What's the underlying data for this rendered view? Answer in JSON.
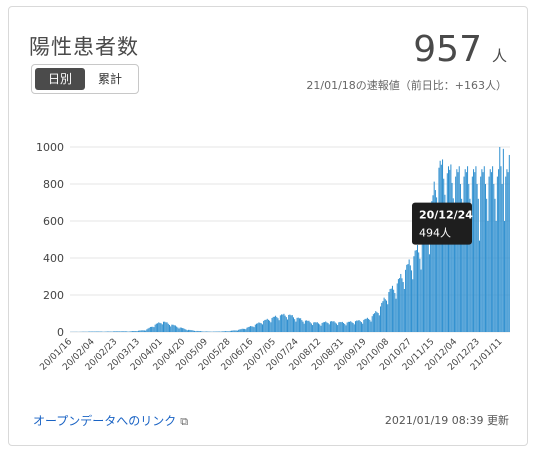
{
  "header": {
    "title": "陽性患者数",
    "toggle": {
      "daily": "日別",
      "cumulative": "累計"
    },
    "big_value": "957",
    "big_unit": "人",
    "subtitle": "21/01/18の速報値（前日比：+163人）"
  },
  "tooltip": {
    "date": "20/12/24",
    "value": "494人"
  },
  "footer": {
    "link_label": "オープンデータへのリンク",
    "updated": "2021/01/19 08:39 更新"
  },
  "colors": {
    "bar": "#2f8fcf",
    "grid": "#e6e6e6",
    "tooltip_bg": "#1e1e1e",
    "link": "#1a63c4"
  },
  "chart_data": {
    "type": "bar",
    "title": "",
    "xlabel": "",
    "ylabel": "",
    "ylim": [
      0,
      1000
    ],
    "yticks": [
      0,
      200,
      400,
      600,
      800,
      1000
    ],
    "grid": true,
    "x_start": "2020-01-16",
    "x_end": "2021-01-18",
    "x_tick_labels": [
      "20/01/16",
      "20/02/04",
      "20/02/23",
      "20/03/13",
      "20/04/01",
      "20/04/20",
      "20/05/09",
      "20/05/28",
      "20/06/16",
      "20/07/05",
      "20/07/24",
      "20/08/12",
      "20/08/31",
      "20/09/19",
      "20/10/08",
      "20/10/27",
      "20/11/15",
      "20/12/04",
      "20/12/23",
      "21/01/11"
    ],
    "weekly_values": [
      1,
      1,
      2,
      3,
      2,
      3,
      4,
      3,
      6,
      10,
      35,
      55,
      40,
      25,
      12,
      6,
      3,
      2,
      3,
      5,
      10,
      20,
      35,
      55,
      70,
      85,
      90,
      75,
      60,
      50,
      45,
      55,
      50,
      48,
      55,
      60,
      75,
      120,
      200,
      240,
      310,
      380,
      450,
      560,
      850,
      820,
      800
    ],
    "series": [
      {
        "values": [
          1,
          1,
          2,
          3,
          2,
          3,
          4,
          3,
          6,
          10,
          35,
          55,
          40,
          25,
          12,
          6,
          3,
          2,
          3,
          5,
          10,
          20,
          35,
          55,
          70,
          85,
          90,
          75,
          60,
          50,
          45,
          55,
          50,
          48,
          55,
          60,
          75,
          120,
          200,
          240,
          310,
          380,
          450,
          560,
          850,
          820,
          800
        ]
      }
    ],
    "highlight": {
      "date": "2020-12-24",
      "value": 494
    }
  }
}
